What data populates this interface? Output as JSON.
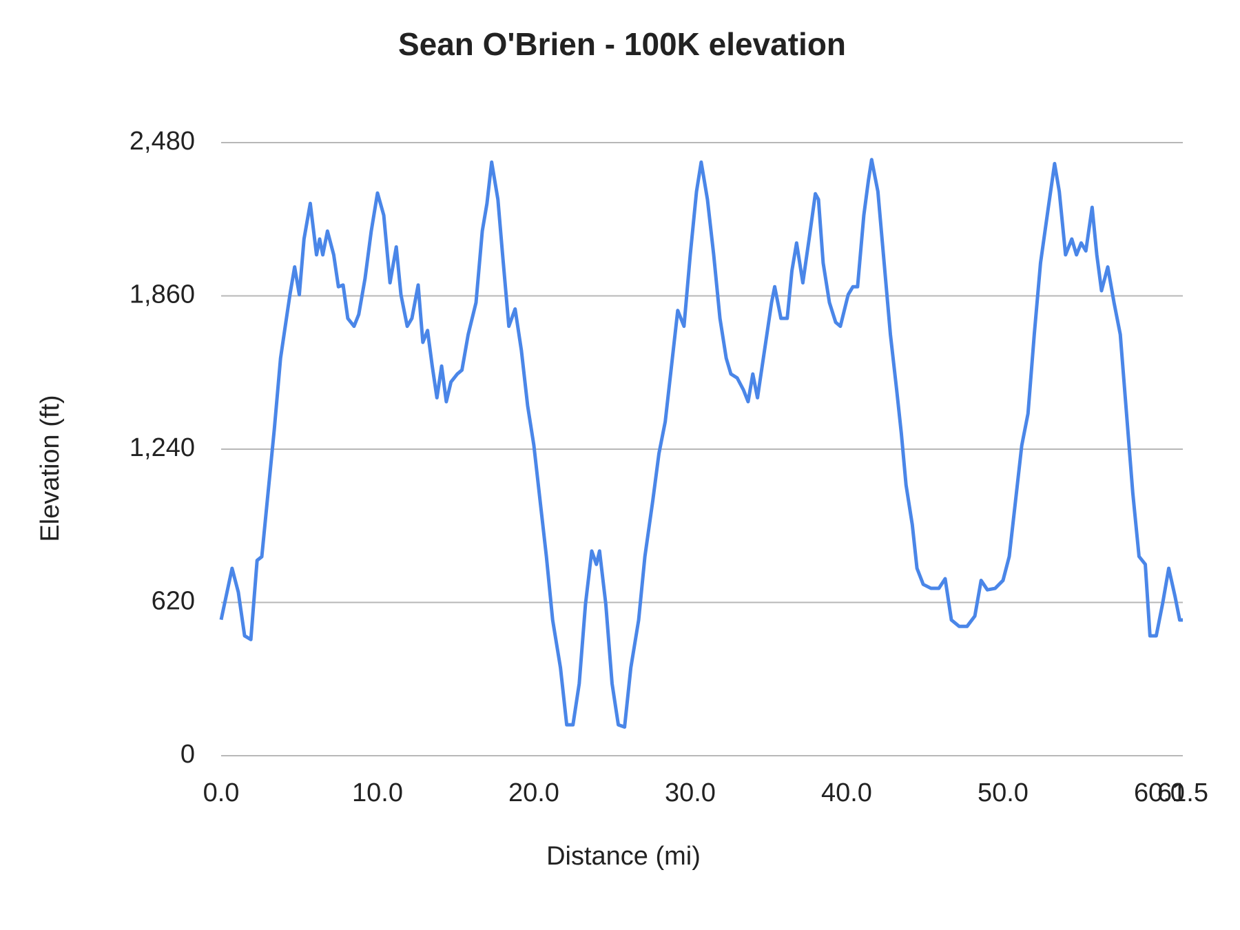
{
  "chart_data": {
    "type": "line",
    "title": "Sean O'Brien - 100K elevation",
    "xlabel": "Distance (mi)",
    "ylabel": "Elevation (ft)",
    "xlim": [
      0,
      61.5
    ],
    "xticks": [
      {
        "value": 0,
        "label": "0.0"
      },
      {
        "value": 10,
        "label": "10.0"
      },
      {
        "value": 20,
        "label": "20.0"
      },
      {
        "value": 30,
        "label": "30.0"
      },
      {
        "value": 40,
        "label": "40.0"
      },
      {
        "value": 50,
        "label": "50.0"
      },
      {
        "value": 60,
        "label": "60.0"
      },
      {
        "value": 61.5,
        "label": "61.5"
      }
    ],
    "ylim": [
      0,
      2480
    ],
    "yticks": [
      0,
      620,
      {
        "value": 1240,
        "label": "1,240"
      },
      {
        "value": 1860,
        "label": "1,860"
      },
      {
        "value": 2480,
        "label": "2,480"
      }
    ],
    "grid": true,
    "series": [
      {
        "color": "#4a86e8",
        "x": [
          0,
          0.7,
          1.1,
          1.5,
          1.9,
          2.3,
          2.6,
          3.0,
          3.4,
          3.8,
          4.1,
          4.4,
          4.7,
          5.0,
          5.3,
          5.7,
          6.1,
          6.3,
          6.5,
          6.8,
          7.2,
          7.5,
          7.8,
          8.1,
          8.5,
          8.8,
          9.2,
          9.6,
          10.0,
          10.4,
          10.8,
          11.2,
          11.5,
          11.9,
          12.2,
          12.6,
          12.9,
          13.2,
          13.5,
          13.8,
          14.1,
          14.4,
          14.7,
          15.1,
          15.4,
          15.8,
          16.3,
          16.7,
          17.0,
          17.3,
          17.7,
          18.0,
          18.4,
          18.8,
          19.2,
          19.6,
          20.0,
          20.4,
          20.8,
          21.2,
          21.7,
          22.1,
          22.5,
          22.9,
          23.3,
          23.7,
          24.0,
          24.2,
          24.6,
          25.0,
          25.4,
          25.8,
          26.2,
          26.7,
          27.1,
          27.6,
          28.0,
          28.4,
          28.8,
          29.2,
          29.6,
          30.0,
          30.4,
          30.7,
          31.1,
          31.5,
          31.9,
          32.3,
          32.6,
          33.0,
          33.4,
          33.7,
          34.0,
          34.3,
          34.6,
          34.9,
          35.2,
          35.4,
          35.8,
          36.2,
          36.5,
          36.8,
          37.2,
          37.6,
          38.0,
          38.2,
          38.5,
          38.9,
          39.3,
          39.6,
          40.1,
          40.4,
          40.7,
          41.1,
          41.4,
          41.6,
          42.0,
          42.4,
          42.8,
          43.2,
          43.5,
          43.8,
          44.2,
          44.5,
          44.9,
          45.4,
          45.9,
          46.3,
          46.7,
          47.2,
          47.7,
          48.2,
          48.6,
          49.0,
          49.5,
          50.0,
          50.4,
          50.8,
          51.2,
          51.6,
          52.0,
          52.4,
          52.9,
          53.3,
          53.6,
          54.0,
          54.4,
          54.7,
          55.0,
          55.3,
          55.7,
          56.0,
          56.3,
          56.7,
          57.1,
          57.5,
          57.9,
          58.3,
          58.7,
          59.1,
          59.4,
          59.8,
          60.2,
          60.6,
          61.0,
          61.3,
          61.5
        ],
        "values": [
          550,
          758,
          661,
          485,
          470,
          790,
          805,
          1063,
          1320,
          1608,
          1737,
          1865,
          1977,
          1865,
          2090,
          2234,
          2026,
          2090,
          2026,
          2122,
          2026,
          1897,
          1904,
          1769,
          1737,
          1785,
          1929,
          2122,
          2276,
          2186,
          1913,
          2058,
          1865,
          1737,
          1769,
          1904,
          1672,
          1720,
          1576,
          1448,
          1576,
          1432,
          1512,
          1544,
          1560,
          1704,
          1833,
          2122,
          2234,
          2401,
          2250,
          2026,
          1737,
          1807,
          1640,
          1416,
          1255,
          1030,
          806,
          549,
          356,
          125,
          125,
          292,
          613,
          828,
          774,
          828,
          613,
          292,
          125,
          116,
          356,
          549,
          806,
          1030,
          1223,
          1351,
          1576,
          1801,
          1737,
          2026,
          2282,
          2401,
          2250,
          2026,
          1769,
          1608,
          1544,
          1528,
          1480,
          1432,
          1544,
          1448,
          1576,
          1704,
          1833,
          1897,
          1769,
          1769,
          1961,
          2074,
          1913,
          2090,
          2273,
          2250,
          1993,
          1833,
          1753,
          1737,
          1865,
          1897,
          1897,
          2186,
          2330,
          2411,
          2282,
          1993,
          1704,
          1480,
          1303,
          1095,
          934,
          758,
          693,
          677,
          677,
          716,
          549,
          523,
          523,
          565,
          709,
          671,
          677,
          709,
          806,
          1030,
          1255,
          1384,
          1704,
          1993,
          2218,
          2395,
          2282,
          2026,
          2090,
          2026,
          2074,
          2042,
          2218,
          2026,
          1881,
          1977,
          1833,
          1704,
          1384,
          1063,
          806,
          774,
          485,
          485,
          613,
          758,
          645,
          549,
          549
        ]
      }
    ]
  }
}
